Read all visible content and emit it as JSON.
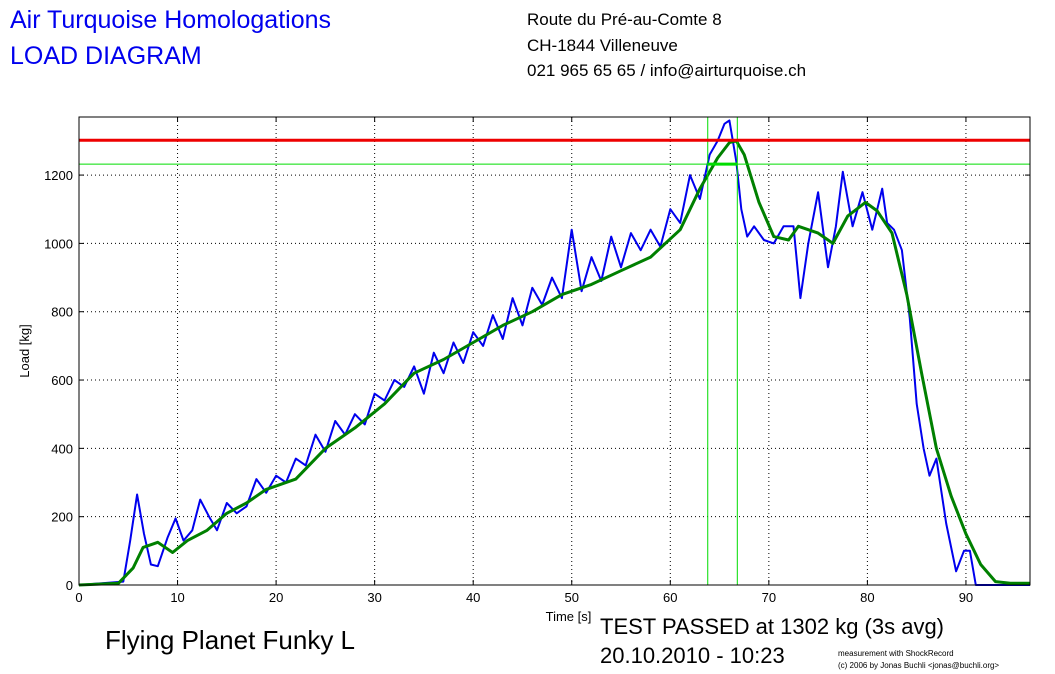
{
  "header": {
    "title_line1": "Air Turquoise Homologations",
    "title_line2": "LOAD DIAGRAM",
    "address_line1": "Route du Pré-au-Comte 8",
    "address_line2": "CH-1844 Villeneuve",
    "address_line3": "021 965 65 65 / info@airturquoise.ch"
  },
  "footer": {
    "product": "Flying Planet Funky L",
    "result": "TEST PASSED at 1302 kg (3s avg)",
    "datetime": "20.10.2010 - 10:23",
    "credit_line1": "measurement with ShockRecord",
    "credit_line2": "(c) 2006 by Jonas Buchli <jonas@buchli.org>"
  },
  "colors": {
    "raw": "#0000ee",
    "average": "#008000",
    "limit": "#ee0000",
    "markers": "#00dd00"
  },
  "chart_data": {
    "type": "line",
    "xlabel": "Time [s]",
    "ylabel": "Load [kg]",
    "xlim": [
      0,
      96.5
    ],
    "ylim": [
      0,
      1370
    ],
    "xticks": [
      0,
      10,
      20,
      30,
      40,
      50,
      60,
      70,
      80,
      90
    ],
    "yticks": [
      0,
      200,
      400,
      600,
      800,
      1000,
      1200
    ],
    "grid": true,
    "reference_line_y": 1302,
    "marker_hline_y": 1232,
    "marker_vlines_x": [
      63.8,
      66.8
    ],
    "series": [
      {
        "key": "raw",
        "x": [
          0,
          4.5,
          5.2,
          5.9,
          6.6,
          7.3,
          8.0,
          9.0,
          9.8,
          10.6,
          11.5,
          12.3,
          13.2,
          14.0,
          15.0,
          16.0,
          17.0,
          18.0,
          19.0,
          20.0,
          21.0,
          22.0,
          23.0,
          24.0,
          25.0,
          26.0,
          27.0,
          28.0,
          29.0,
          30.0,
          31.0,
          32.0,
          33.0,
          34.0,
          35.0,
          36.0,
          37.0,
          38.0,
          39.0,
          40.0,
          41.0,
          42.0,
          43.0,
          44.0,
          45.0,
          46.0,
          47.0,
          48.0,
          49.0,
          50.0,
          51.0,
          52.0,
          53.0,
          54.0,
          55.0,
          56.0,
          57.0,
          58.0,
          59.0,
          60.0,
          61.0,
          62.0,
          63.0,
          64.0,
          64.8,
          65.5,
          66.0,
          66.7,
          67.2,
          67.8,
          68.5,
          69.5,
          70.5,
          71.5,
          72.5,
          73.2,
          74.0,
          75.0,
          76.0,
          76.8,
          77.5,
          78.5,
          79.5,
          80.5,
          81.5,
          82.0,
          82.7,
          83.5,
          84.3,
          85.0,
          85.7,
          86.3,
          87.0,
          88.0,
          89.0,
          89.8,
          90.4,
          91.0,
          96.5
        ],
        "y": [
          0,
          10,
          130,
          265,
          150,
          60,
          55,
          140,
          195,
          130,
          160,
          250,
          200,
          160,
          240,
          210,
          230,
          310,
          270,
          320,
          300,
          370,
          350,
          440,
          390,
          480,
          440,
          500,
          470,
          560,
          540,
          600,
          580,
          640,
          560,
          680,
          620,
          710,
          650,
          740,
          700,
          790,
          720,
          840,
          760,
          870,
          820,
          900,
          840,
          1040,
          860,
          960,
          890,
          1020,
          930,
          1030,
          980,
          1040,
          990,
          1100,
          1060,
          1200,
          1130,
          1260,
          1300,
          1350,
          1360,
          1240,
          1100,
          1020,
          1050,
          1010,
          1000,
          1050,
          1050,
          840,
          1000,
          1150,
          930,
          1050,
          1210,
          1050,
          1150,
          1040,
          1160,
          1060,
          1040,
          980,
          780,
          530,
          400,
          320,
          370,
          180,
          40,
          100,
          100,
          0,
          0
        ]
      },
      {
        "key": "average",
        "x": [
          0,
          4.0,
          5.5,
          6.5,
          8.0,
          9.5,
          11.0,
          13.0,
          15.0,
          17.0,
          19.0,
          22.0,
          25.0,
          28.0,
          31.0,
          34.0,
          37.0,
          40.0,
          43.0,
          46.0,
          49.0,
          52.0,
          55.0,
          58.0,
          61.0,
          63.0,
          64.8,
          66.0,
          66.7,
          67.5,
          69.0,
          70.5,
          72.0,
          73.0,
          75.0,
          76.5,
          78.0,
          79.8,
          81.0,
          82.5,
          84.0,
          85.5,
          87.0,
          88.5,
          90.0,
          91.5,
          93.0,
          94.5,
          96.5
        ],
        "y": [
          0,
          5,
          50,
          110,
          125,
          95,
          130,
          160,
          210,
          240,
          280,
          310,
          400,
          460,
          530,
          620,
          660,
          710,
          760,
          800,
          850,
          880,
          920,
          960,
          1040,
          1160,
          1250,
          1295,
          1300,
          1260,
          1120,
          1020,
          1010,
          1050,
          1030,
          1000,
          1080,
          1120,
          1095,
          1030,
          850,
          620,
          400,
          260,
          150,
          60,
          10,
          5,
          5
        ]
      }
    ]
  }
}
